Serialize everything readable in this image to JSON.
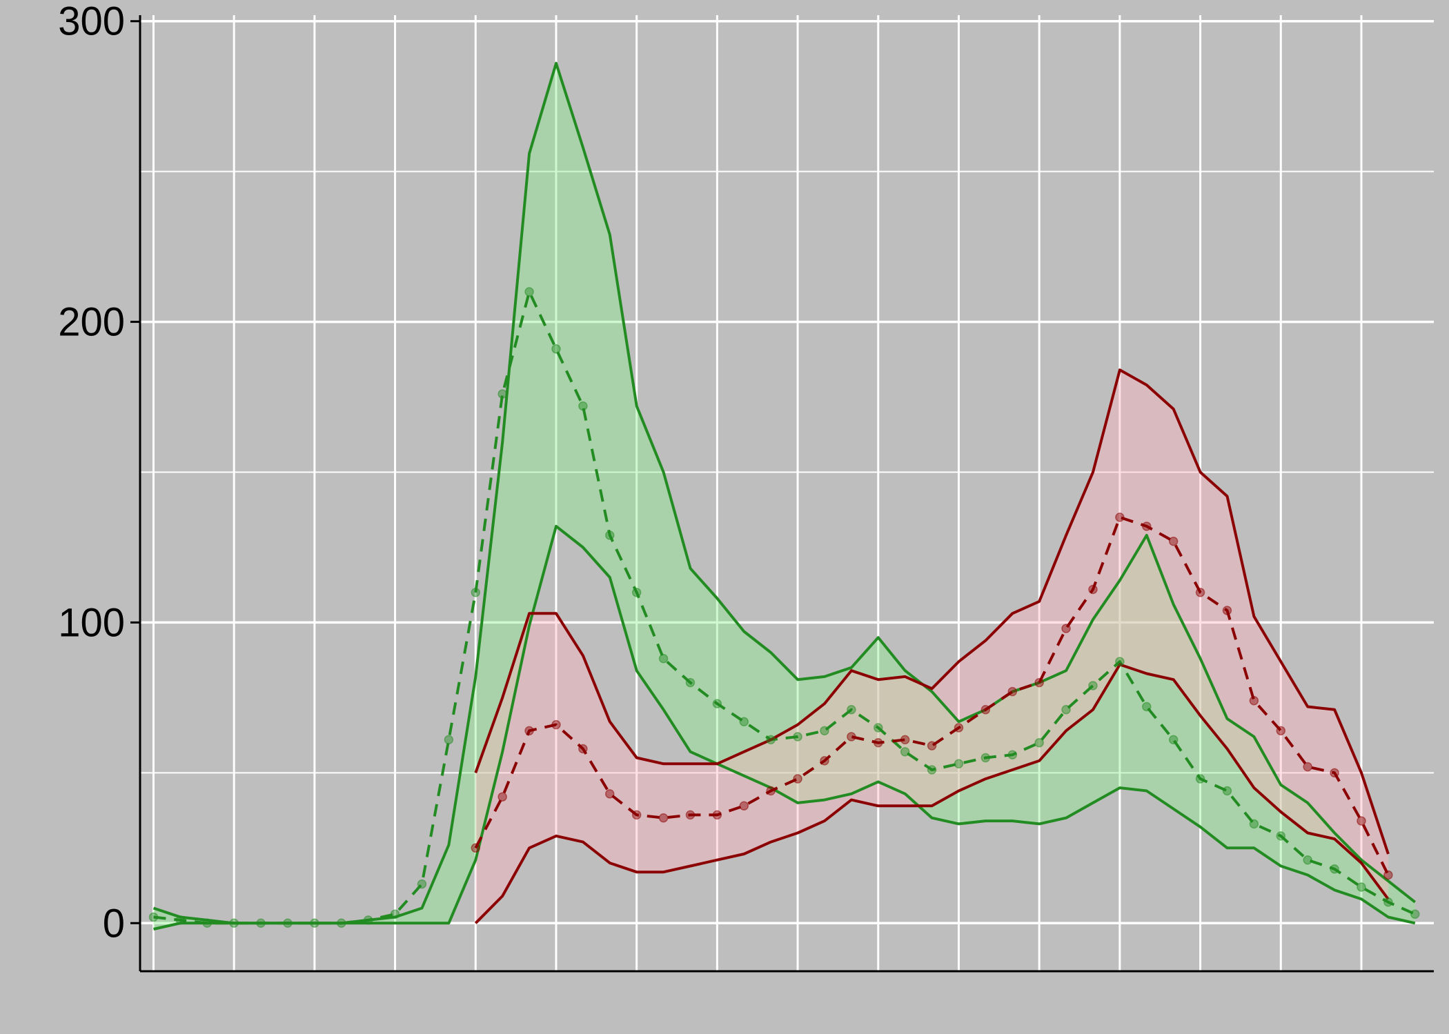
{
  "colors": {
    "background": "#bebebe",
    "grid": "#ffffff",
    "green": "#228b22",
    "green_fill": "#90ee90",
    "red": "#8b0000",
    "red_fill": "#ffb6c1"
  },
  "chart_data": {
    "type": "area",
    "title": "",
    "xlabel": "",
    "ylabel": "",
    "grid": true,
    "xlim": [
      0.5,
      48.7
    ],
    "ylim": [
      -16,
      302
    ],
    "y_ticks": [
      0,
      100,
      200,
      300
    ],
    "y_tick_labels": [
      "0",
      "100",
      "200",
      "300"
    ],
    "series": [
      {
        "color": "green",
        "x": [
          1,
          2,
          3,
          4,
          5,
          6,
          7,
          8,
          9,
          10,
          11,
          12,
          13,
          14,
          15,
          16,
          17,
          18,
          19,
          20,
          21,
          22,
          23,
          24,
          25,
          26,
          27,
          28,
          29,
          30,
          31,
          32,
          33,
          34,
          35,
          36,
          37,
          38,
          39,
          40,
          41,
          42,
          43,
          44,
          45,
          46,
          47,
          48
        ],
        "mean": [
          2,
          1,
          0,
          0,
          0,
          0,
          0,
          0,
          1,
          3,
          13,
          61,
          110,
          176,
          210,
          191,
          172,
          129,
          110,
          88,
          80,
          73,
          67,
          61,
          62,
          64,
          71,
          65,
          57,
          51,
          53,
          55,
          56,
          60,
          71,
          79,
          87,
          72,
          61,
          48,
          44,
          33,
          29,
          21,
          18,
          12,
          7,
          3
        ],
        "lower": [
          -2,
          0,
          0,
          0,
          0,
          0,
          0,
          0,
          0,
          0,
          0,
          0,
          21,
          57,
          99,
          132,
          125,
          115,
          84,
          71,
          57,
          53,
          49,
          45,
          40,
          41,
          43,
          47,
          43,
          35,
          33,
          34,
          34,
          33,
          35,
          40,
          45,
          44,
          38,
          32,
          25,
          25,
          19,
          16,
          11,
          8,
          2,
          0
        ],
        "upper": [
          5,
          2,
          1,
          0,
          0,
          0,
          0,
          0,
          1,
          2,
          5,
          26,
          82,
          160,
          256,
          286,
          258,
          229,
          172,
          150,
          118,
          108,
          97,
          90,
          81,
          82,
          85,
          95,
          84,
          77,
          67,
          71,
          77,
          80,
          84,
          101,
          114,
          129,
          106,
          88,
          68,
          62,
          46,
          40,
          30,
          21,
          14,
          7
        ]
      },
      {
        "color": "red",
        "x": [
          13,
          14,
          15,
          16,
          17,
          18,
          19,
          20,
          21,
          22,
          23,
          24,
          25,
          26,
          27,
          28,
          29,
          30,
          31,
          32,
          33,
          34,
          35,
          36,
          37,
          38,
          39,
          40,
          41,
          42,
          43,
          44,
          45,
          46,
          47
        ],
        "mean": [
          25,
          42,
          64,
          66,
          58,
          43,
          36,
          35,
          36,
          36,
          39,
          44,
          48,
          54,
          62,
          60,
          61,
          59,
          65,
          71,
          77,
          80,
          98,
          111,
          135,
          132,
          127,
          110,
          104,
          74,
          64,
          52,
          50,
          34,
          16
        ],
        "lower": [
          0,
          9,
          25,
          29,
          27,
          20,
          17,
          17,
          19,
          21,
          23,
          27,
          30,
          34,
          41,
          39,
          39,
          39,
          44,
          48,
          51,
          54,
          64,
          71,
          86,
          83,
          81,
          69,
          58,
          45,
          37,
          30,
          28,
          20,
          8
        ],
        "upper": [
          50,
          75,
          103,
          103,
          89,
          67,
          55,
          53,
          53,
          53,
          57,
          61,
          66,
          73,
          84,
          81,
          82,
          78,
          87,
          94,
          103,
          107,
          129,
          150,
          184,
          179,
          171,
          150,
          142,
          102,
          87,
          72,
          71,
          50,
          23
        ]
      }
    ]
  }
}
